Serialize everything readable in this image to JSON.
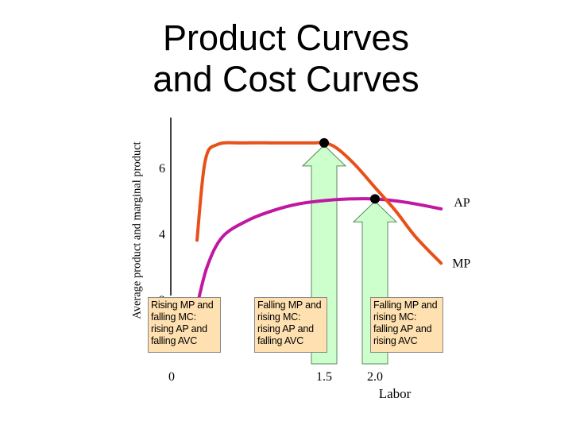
{
  "title_lines": [
    "Product Curves",
    "and Cost Curves"
  ],
  "colors": {
    "mp_curve": "#e8501a",
    "ap_curve": "#c018a0",
    "arrow_fill": "#ccffcc",
    "arrow_stroke": "#5a8a5a",
    "note_box": "#ffe0b0"
  },
  "chart_data": {
    "type": "line",
    "title": "",
    "ylabel": "Average product and marginal product",
    "xlabel": "Labor",
    "x_ticks": [
      {
        "value": 0,
        "label": "0"
      },
      {
        "value": 1.5,
        "label": "1.5"
      },
      {
        "value": 2.0,
        "label": "2.0"
      }
    ],
    "y_ticks": [
      {
        "value": 2,
        "label": "2"
      },
      {
        "value": 4,
        "label": "4"
      },
      {
        "value": 6,
        "label": "6"
      }
    ],
    "series": [
      {
        "name": "MP",
        "x": [
          0.25,
          0.33,
          0.45,
          0.7,
          1.0,
          1.25,
          1.4,
          1.5,
          1.62,
          1.8,
          2.0,
          2.2,
          2.4,
          2.65
        ],
        "y": [
          3.8,
          6.2,
          6.7,
          6.75,
          6.75,
          6.75,
          6.75,
          6.75,
          6.6,
          6.1,
          5.4,
          4.7,
          3.9,
          3.1
        ]
      },
      {
        "name": "AP",
        "x": [
          0.25,
          0.35,
          0.5,
          0.75,
          1.0,
          1.25,
          1.5,
          1.75,
          2.0,
          2.3,
          2.65
        ],
        "y": [
          1.8,
          3.0,
          3.9,
          4.4,
          4.7,
          4.9,
          5.0,
          5.05,
          5.05,
          4.95,
          4.75
        ]
      }
    ],
    "markers": [
      {
        "x": 1.5,
        "y": 6.75,
        "series": "MP"
      },
      {
        "x": 2.0,
        "y": 5.05,
        "series": "AP"
      }
    ],
    "annotations": [
      "Rising MP and falling MC: rising AP and falling AVC",
      "Falling MP and rising MC: rising AP and falling AVC",
      "Falling MP and rising MC: falling AP and rising AVC"
    ]
  }
}
